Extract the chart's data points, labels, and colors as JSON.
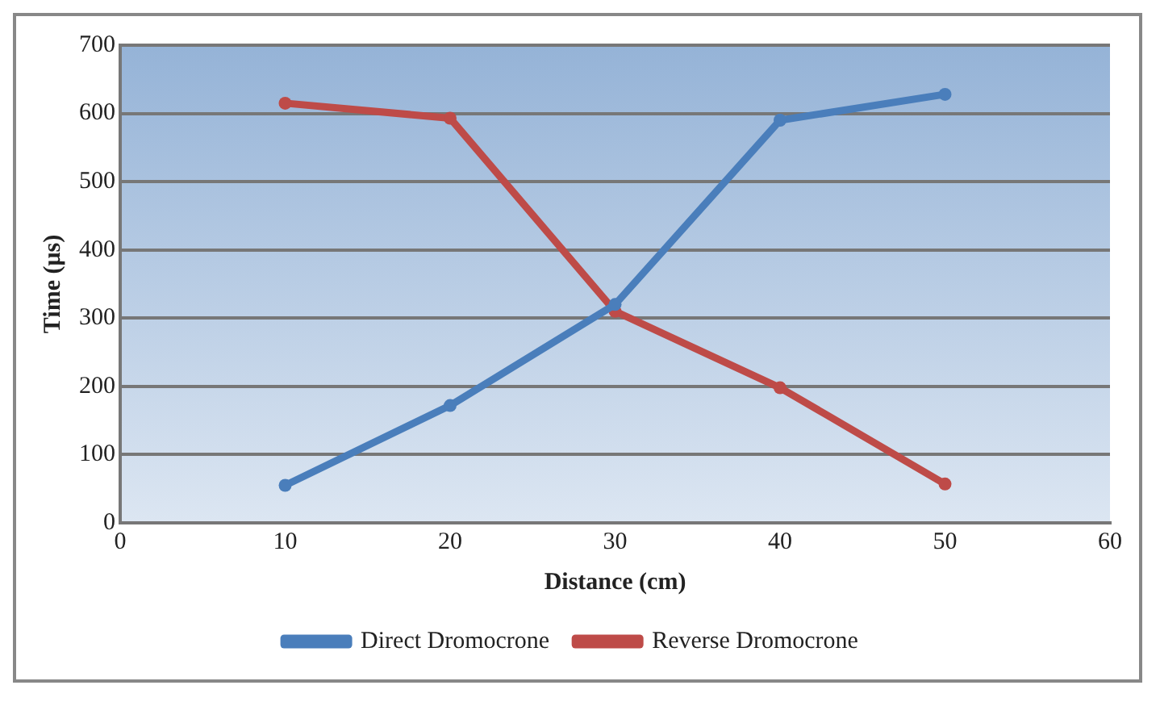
{
  "chart_data": {
    "type": "line",
    "xlabel": "Distance (cm)",
    "ylabel": "Time (μs)",
    "xlim": [
      0,
      60
    ],
    "xticks": [
      0,
      10,
      20,
      30,
      40,
      50,
      60
    ],
    "ylim": [
      0,
      700
    ],
    "yticks": [
      0,
      100,
      200,
      300,
      400,
      500,
      600,
      700
    ],
    "x": [
      10,
      20,
      30,
      40,
      50
    ],
    "series": [
      {
        "name": "Direct Dromocrone",
        "color": "#4a7ebb",
        "values": [
          55,
          172,
          320,
          590,
          628
        ]
      },
      {
        "name": "Reverse Dromocrone",
        "color": "#be4b48",
        "values": [
          615,
          593,
          310,
          198,
          57
        ]
      }
    ],
    "grid": "y",
    "legend": "bottom",
    "marker": "circle",
    "line_style": "solid"
  }
}
